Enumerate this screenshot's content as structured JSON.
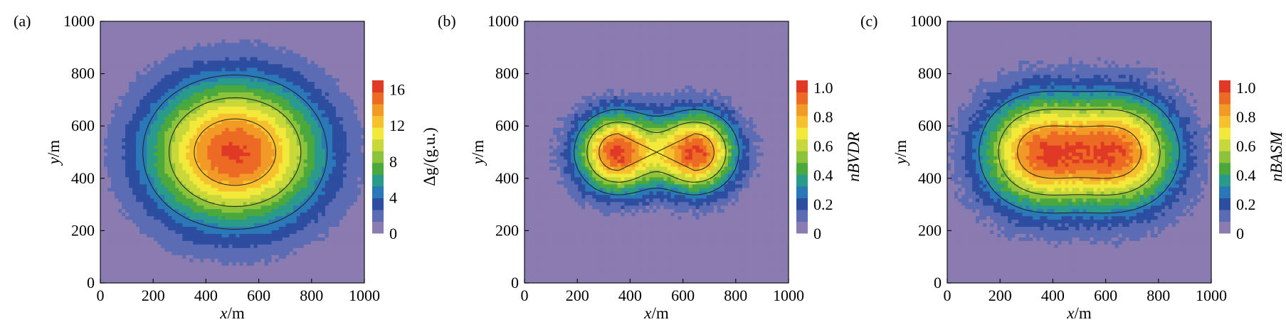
{
  "figure": {
    "panels": [
      {
        "id": "a",
        "panel_label": "(a)",
        "colorbar_label": "Δg/(g.u.)",
        "colorbar_italic": false
      },
      {
        "id": "b",
        "panel_label": "(b)",
        "colorbar_label": "nBVDR",
        "colorbar_italic": true
      },
      {
        "id": "c",
        "panel_label": "(c)",
        "colorbar_label": "nBASM",
        "colorbar_italic": true
      }
    ]
  },
  "colors": {
    "colormap": [
      "#8a7bb0",
      "#5b6cb4",
      "#2c4da0",
      "#2a78b8",
      "#2a9a8a",
      "#4aa83d",
      "#8dc33a",
      "#c8d83a",
      "#f2e93a",
      "#f6c12d",
      "#f29a26",
      "#ec6a24",
      "#e03a26"
    ],
    "contour_line": "#202020",
    "fine_contour": "#d8d8e8"
  },
  "chart_data": [
    {
      "type": "heatmap",
      "title": "",
      "xlabel": "x/m",
      "ylabel": "y/m",
      "xlim": [
        0,
        1000
      ],
      "ylim": [
        0,
        1000
      ],
      "xticks": [
        "0",
        "200",
        "400",
        "600",
        "800",
        "1000"
      ],
      "yticks": [
        "0",
        "200",
        "400",
        "600",
        "800",
        "1000"
      ],
      "colorbar": {
        "label": "Δg/(g.u.)",
        "range": [
          0,
          17
        ],
        "ticks": [
          "0",
          "4",
          "8",
          "12",
          "16"
        ],
        "tick_values": [
          0,
          4,
          8,
          12,
          16
        ]
      },
      "field": {
        "peak_value": 16,
        "sources": [
          {
            "x": 400,
            "y": 500
          },
          {
            "x": 620,
            "y": 500
          }
        ],
        "spread_m": 190,
        "smoothness": "broad"
      }
    },
    {
      "type": "heatmap",
      "title": "",
      "xlabel": "x/m",
      "ylabel": "y/m",
      "xlim": [
        0,
        1000
      ],
      "ylim": [
        0,
        1000
      ],
      "xticks": [
        "0",
        "200",
        "400",
        "600",
        "800",
        "1000"
      ],
      "yticks": [
        "0",
        "200",
        "400",
        "600",
        "800",
        "1000"
      ],
      "colorbar": {
        "label": "nBVDR",
        "range": [
          0,
          1.05
        ],
        "ticks": [
          "0",
          "0.2",
          "0.4",
          "0.6",
          "0.8",
          "1.0"
        ],
        "tick_values": [
          0,
          0.2,
          0.4,
          0.6,
          0.8,
          1.0
        ]
      },
      "field": {
        "peak_value": 1.0,
        "sources": [
          {
            "x": 350,
            "y": 500
          },
          {
            "x": 650,
            "y": 500
          }
        ],
        "spread_m": 105,
        "smoothness": "sharp"
      }
    },
    {
      "type": "heatmap",
      "title": "",
      "xlabel": "x/m",
      "ylabel": "y/m",
      "xlim": [
        0,
        1000
      ],
      "ylim": [
        0,
        1000
      ],
      "xticks": [
        "0",
        "200",
        "400",
        "600",
        "800",
        "1000"
      ],
      "yticks": [
        "0",
        "200",
        "400",
        "600",
        "800",
        "1000"
      ],
      "colorbar": {
        "label": "nBASM",
        "range": [
          0,
          1.05
        ],
        "ticks": [
          "0",
          "0.2",
          "0.4",
          "0.6",
          "0.8",
          "1.0"
        ],
        "tick_values": [
          0,
          0.2,
          0.4,
          0.6,
          0.8,
          1.0
        ]
      },
      "field": {
        "peak_value": 1.0,
        "sources": [
          {
            "x": 340,
            "y": 500
          },
          {
            "x": 660,
            "y": 500
          }
        ],
        "spread_m": 150,
        "smoothness": "medium"
      }
    }
  ]
}
